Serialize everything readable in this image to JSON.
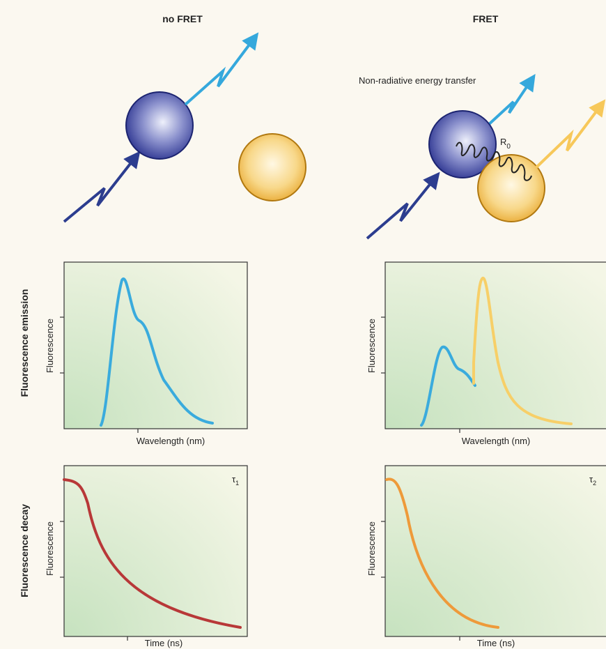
{
  "columns": [
    {
      "title": "no FRET",
      "emission": {
        "y_label": "Fluorescence",
        "x_label": "Wavelength (nm)"
      },
      "decay": {
        "y_label": "Fluorescence",
        "x_label": "Time (ns)",
        "lifetime": {
          "symbol": "τ",
          "subscript": "1"
        }
      }
    },
    {
      "title": "FRET",
      "emission": {
        "y_label": "Fluorescence",
        "x_label": "Wavelength (nm)"
      },
      "decay": {
        "y_label": "Fluorescence",
        "x_label": "Time (ns)",
        "lifetime": {
          "symbol": "τ",
          "subscript": "2"
        }
      }
    }
  ],
  "rows": {
    "emission": "Fluorescence emission",
    "decay": "Fluorescence decay"
  },
  "annotation": "Non-radiative energy transfer",
  "distance_label": {
    "symbol": "R",
    "subscript": "0"
  }
}
